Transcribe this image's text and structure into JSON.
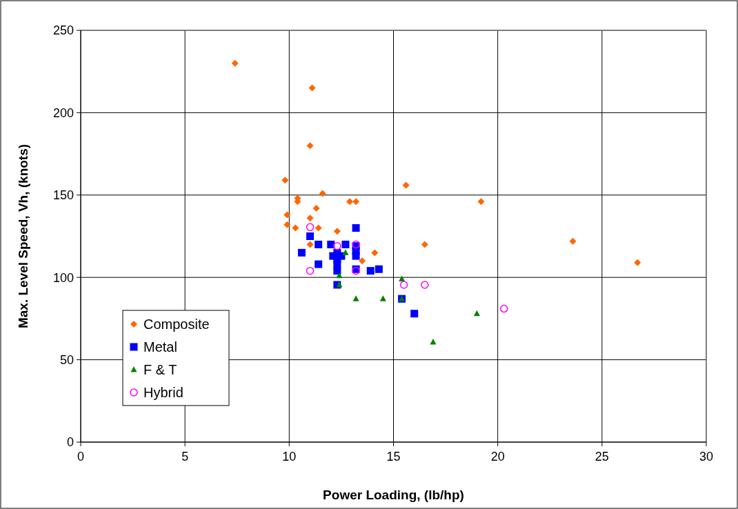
{
  "chart_data": {
    "type": "scatter",
    "xlabel": "Power Loading, (lb/hp)",
    "ylabel": "Max. Level Speed, Vh, (knots)",
    "xlim": [
      0,
      30
    ],
    "xticks": [
      0,
      5,
      10,
      15,
      20,
      25,
      30
    ],
    "ylim": [
      0,
      250
    ],
    "yticks": [
      0,
      50,
      100,
      150,
      200,
      250
    ],
    "grid": true,
    "legend": "bottom left",
    "series": [
      {
        "name": "Composite",
        "color": "#ff6600",
        "marker": "diamond",
        "x": [
          7.4,
          11.1,
          11.0,
          9.8,
          15.6,
          11.6,
          10.4,
          10.4,
          12.9,
          13.2,
          19.2,
          9.9,
          11.3,
          11.0,
          9.9,
          10.3,
          11.4,
          12.3,
          23.6,
          16.5,
          11.0,
          14.1,
          13.5,
          26.7
        ],
        "values": [
          230,
          215,
          180,
          159,
          156,
          151,
          148,
          146,
          146,
          146,
          146,
          138,
          142,
          136,
          132,
          130,
          130,
          128,
          122,
          120,
          120,
          115,
          110,
          109
        ]
      },
      {
        "name": "Metal",
        "color": "#0000ff",
        "marker": "square",
        "x": [
          13.2,
          11.0,
          11.4,
          12.0,
          12.7,
          10.6,
          12.1,
          12.3,
          12.5,
          12.3,
          12.3,
          11.4,
          12.3,
          12.3,
          13.2,
          13.2,
          13.2,
          13.2,
          13.9,
          14.3,
          15.4,
          16.0
        ],
        "values": [
          130,
          125,
          120,
          120,
          120,
          115,
          113,
          115,
          113,
          111,
          108,
          108,
          104,
          95.5,
          119,
          116,
          113,
          105,
          104,
          105,
          87,
          78
        ]
      },
      {
        "name": "F & T",
        "color": "#008000",
        "marker": "triangle",
        "x": [
          12.7,
          12.4,
          12.4,
          13.2,
          14.5,
          15.4,
          15.4,
          19.0,
          16.9
        ],
        "values": [
          115,
          101,
          95.5,
          87,
          87,
          99,
          87,
          78,
          60.7
        ]
      },
      {
        "name": "Hybrid",
        "color": "#ff00ff",
        "marker": "circle",
        "x": [
          11.0,
          12.3,
          13.2,
          11.0,
          13.2,
          15.5,
          16.5,
          20.3
        ],
        "values": [
          130.5,
          119,
          120,
          104,
          104,
          95.5,
          95.5,
          81
        ]
      }
    ]
  }
}
